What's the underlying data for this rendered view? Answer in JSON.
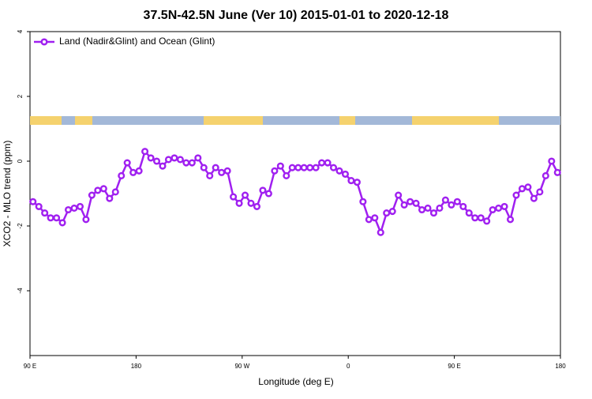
{
  "chart_data": {
    "type": "line",
    "title": "37.5N-42.5N June (Ver 10)   2015-01-01 to 2020-12-18",
    "x_label": "Longitude (deg E)",
    "y_label": "XCO2 - MLO trend (ppm)",
    "x": [
      92.5,
      97.5,
      102.5,
      107.5,
      112.5,
      117.5,
      122.5,
      127.5,
      132.5,
      137.5,
      142.5,
      147.5,
      152.5,
      157.5,
      162.5,
      167.5,
      172.5,
      177.5,
      182.5,
      187.5,
      192.5,
      197.5,
      202.5,
      207.5,
      212.5,
      217.5,
      222.5,
      227.5,
      232.5,
      237.5,
      242.5,
      247.5,
      252.5,
      257.5,
      262.5,
      267.5,
      272.5,
      277.5,
      282.5,
      287.5,
      292.5,
      297.5,
      302.5,
      307.5,
      312.5,
      317.5,
      322.5,
      327.5,
      332.5,
      337.5,
      342.5,
      347.5,
      352.5,
      357.5,
      362.5,
      367.5,
      372.5,
      377.5,
      382.5,
      387.5,
      392.5,
      397.5,
      402.5,
      407.5,
      412.5,
      417.5,
      422.5,
      427.5,
      432.5,
      437.5,
      442.5,
      447.5,
      452.5,
      457.5,
      462.5,
      467.5,
      472.5,
      477.5,
      482.5,
      487.5,
      492.5,
      497.5,
      502.5,
      507.5,
      512.5,
      517.5,
      522.5,
      527.5,
      532.5,
      537.5
    ],
    "series": [
      {
        "name": "Land (Nadir&Glint) and Ocean (Glint)",
        "color": "#a020f0",
        "values": [
          -1.25,
          -1.4,
          -1.6,
          -1.75,
          -1.75,
          -1.9,
          -1.5,
          -1.45,
          -1.4,
          -1.8,
          -1.05,
          -0.9,
          -0.85,
          -1.15,
          -0.95,
          -0.45,
          -0.05,
          -0.35,
          -0.3,
          0.3,
          0.1,
          0,
          -0.15,
          0.05,
          0.1,
          0.05,
          -0.05,
          -0.05,
          0.1,
          -0.2,
          -0.45,
          -0.2,
          -0.35,
          -0.3,
          -1.1,
          -1.3,
          -1.05,
          -1.3,
          -1.4,
          -0.9,
          -1.0,
          -0.3,
          -0.15,
          -0.45,
          -0.2,
          -0.2,
          -0.2,
          -0.2,
          -0.2,
          -0.05,
          -0.05,
          -0.2,
          -0.3,
          -0.4,
          -0.6,
          -0.65,
          -1.25,
          -1.8,
          -1.75,
          -2.2,
          -1.6,
          -1.55,
          -1.05,
          -1.35,
          -1.25,
          -1.3,
          -1.5,
          -1.45,
          -1.6,
          -1.45,
          -1.2,
          -1.35,
          -1.25,
          -1.4,
          -1.6,
          -1.75,
          -1.75,
          -1.85,
          -1.5,
          -1.45,
          -1.4,
          -1.8,
          -1.05,
          -0.85,
          -0.8,
          -1.15,
          -0.95,
          -0.45,
          0,
          -0.35
        ]
      }
    ],
    "xlim": [
      90,
      540
    ],
    "xticks": [
      {
        "value": 90,
        "label": "90 E"
      },
      {
        "value": 180,
        "label": "180"
      },
      {
        "value": 270,
        "label": "90 W"
      },
      {
        "value": 360,
        "label": "0"
      },
      {
        "value": 450,
        "label": "90 E"
      },
      {
        "value": 540,
        "label": "180"
      }
    ],
    "ylim": [
      -6,
      4
    ],
    "yticks": [
      -4,
      -2,
      0,
      2,
      4
    ],
    "legend": "upper left"
  }
}
